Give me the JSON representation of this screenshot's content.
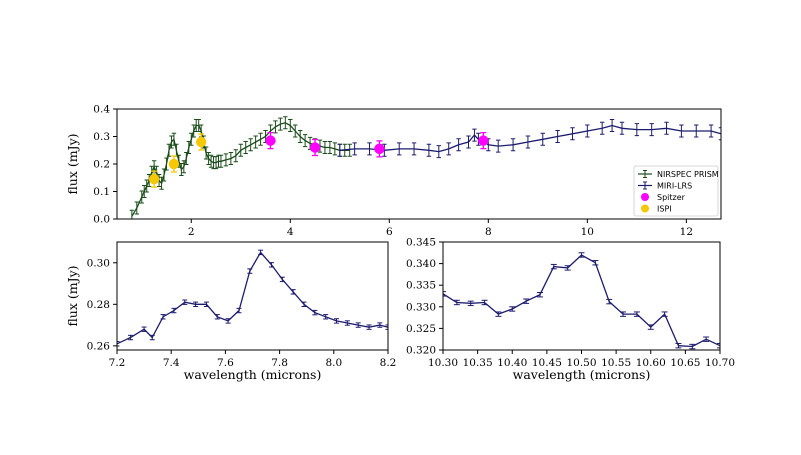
{
  "chart_data": [
    {
      "type": "line",
      "panel": "top",
      "ylabel": "flux (mJy)",
      "xlabel": "",
      "xlim": [
        0.5,
        12.7
      ],
      "ylim": [
        0.0,
        0.4
      ],
      "xticks": [
        2,
        4,
        6,
        8,
        10,
        12
      ],
      "yticks": [
        0.0,
        0.1,
        0.2,
        0.3,
        0.4
      ],
      "legend_position": "lower-right",
      "series": [
        {
          "name": "NIRSPEC PRISM",
          "style": "line-errorbars",
          "color": "#1a4d1a",
          "x": [
            0.8,
            0.9,
            1.0,
            1.05,
            1.1,
            1.15,
            1.2,
            1.25,
            1.3,
            1.35,
            1.4,
            1.45,
            1.5,
            1.55,
            1.6,
            1.65,
            1.7,
            1.75,
            1.8,
            1.85,
            1.9,
            1.95,
            2.0,
            2.05,
            2.1,
            2.15,
            2.2,
            2.25,
            2.3,
            2.35,
            2.4,
            2.45,
            2.5,
            2.55,
            2.6,
            2.7,
            2.8,
            2.9,
            3.0,
            3.1,
            3.2,
            3.3,
            3.4,
            3.5,
            3.6,
            3.7,
            3.8,
            3.9,
            4.0,
            4.1,
            4.2,
            4.3,
            4.4,
            4.5,
            4.6,
            4.7,
            4.8,
            4.9,
            5.0,
            5.1,
            5.2
          ],
          "y": [
            0.01,
            0.04,
            0.08,
            0.1,
            0.12,
            0.14,
            0.17,
            0.19,
            0.17,
            0.14,
            0.13,
            0.16,
            0.2,
            0.25,
            0.28,
            0.29,
            0.25,
            0.21,
            0.18,
            0.19,
            0.22,
            0.26,
            0.29,
            0.32,
            0.34,
            0.34,
            0.32,
            0.28,
            0.24,
            0.22,
            0.21,
            0.205,
            0.205,
            0.21,
            0.21,
            0.215,
            0.22,
            0.23,
            0.25,
            0.26,
            0.27,
            0.28,
            0.29,
            0.3,
            0.32,
            0.335,
            0.345,
            0.35,
            0.34,
            0.32,
            0.3,
            0.285,
            0.275,
            0.27,
            0.265,
            0.26,
            0.26,
            0.255,
            0.25,
            0.25,
            0.25
          ]
        },
        {
          "name": "MIRI-LRS",
          "style": "line-errorbars",
          "color": "#1c1c6e",
          "x": [
            5.0,
            5.3,
            5.6,
            5.9,
            6.2,
            6.5,
            6.8,
            7.0,
            7.2,
            7.4,
            7.6,
            7.72,
            7.8,
            8.0,
            8.2,
            8.5,
            8.8,
            9.1,
            9.4,
            9.7,
            10.0,
            10.3,
            10.5,
            10.7,
            11.0,
            11.3,
            11.6,
            11.9,
            12.2,
            12.5,
            12.7
          ],
          "y": [
            0.25,
            0.255,
            0.255,
            0.25,
            0.255,
            0.255,
            0.25,
            0.245,
            0.255,
            0.27,
            0.28,
            0.305,
            0.29,
            0.27,
            0.265,
            0.27,
            0.28,
            0.29,
            0.3,
            0.31,
            0.32,
            0.33,
            0.34,
            0.33,
            0.325,
            0.325,
            0.33,
            0.32,
            0.32,
            0.32,
            0.31
          ]
        },
        {
          "name": "Spitzer",
          "style": "markers",
          "color": "#ff00ff",
          "x": [
            3.6,
            4.5,
            5.8,
            7.9
          ],
          "y": [
            0.285,
            0.26,
            0.255,
            0.285
          ]
        },
        {
          "name": "ISPI",
          "style": "markers",
          "color": "#f5c800",
          "x": [
            1.25,
            1.65,
            2.2
          ],
          "y": [
            0.145,
            0.2,
            0.28
          ]
        }
      ]
    },
    {
      "type": "line",
      "panel": "bottom-left",
      "ylabel": "flux (mJy)",
      "xlabel": "wavelength (microns)",
      "xlim": [
        7.2,
        8.2
      ],
      "ylim": [
        0.258,
        0.31
      ],
      "xticks": [
        "7.2",
        "7.4",
        "7.6",
        "7.8",
        "8.0",
        "8.2"
      ],
      "yticks": [
        "0.26",
        "0.28",
        "0.30"
      ],
      "series": [
        {
          "color": "#1c1c6e",
          "x": [
            7.2,
            7.25,
            7.3,
            7.33,
            7.37,
            7.41,
            7.45,
            7.49,
            7.53,
            7.57,
            7.61,
            7.65,
            7.69,
            7.73,
            7.77,
            7.81,
            7.85,
            7.89,
            7.93,
            7.97,
            8.01,
            8.05,
            8.09,
            8.13,
            8.17,
            8.2
          ],
          "y": [
            0.261,
            0.264,
            0.268,
            0.264,
            0.274,
            0.277,
            0.281,
            0.28,
            0.28,
            0.274,
            0.272,
            0.277,
            0.296,
            0.305,
            0.299,
            0.292,
            0.286,
            0.28,
            0.276,
            0.274,
            0.272,
            0.271,
            0.27,
            0.269,
            0.27,
            0.269
          ]
        }
      ]
    },
    {
      "type": "line",
      "panel": "bottom-right",
      "ylabel": "",
      "xlabel": "wavelength (microns)",
      "xlim": [
        10.3,
        10.7
      ],
      "ylim": [
        0.32,
        0.345
      ],
      "xticks": [
        "10.30",
        "10.35",
        "10.40",
        "10.45",
        "10.50",
        "10.55",
        "10.60",
        "10.65",
        "10.70"
      ],
      "yticks": [
        "0.320",
        "0.325",
        "0.330",
        "0.335",
        "0.340",
        "0.345"
      ],
      "series": [
        {
          "color": "#1c1c6e",
          "x": [
            10.3,
            10.32,
            10.34,
            10.36,
            10.38,
            10.4,
            10.42,
            10.44,
            10.46,
            10.48,
            10.5,
            10.52,
            10.54,
            10.56,
            10.58,
            10.6,
            10.62,
            10.64,
            10.66,
            10.68,
            10.7
          ],
          "y": [
            0.333,
            0.331,
            0.3308,
            0.331,
            0.3283,
            0.3295,
            0.3313,
            0.3328,
            0.3393,
            0.339,
            0.342,
            0.3402,
            0.3312,
            0.3283,
            0.3283,
            0.3253,
            0.3283,
            0.321,
            0.3208,
            0.3225,
            0.321
          ]
        }
      ]
    }
  ]
}
